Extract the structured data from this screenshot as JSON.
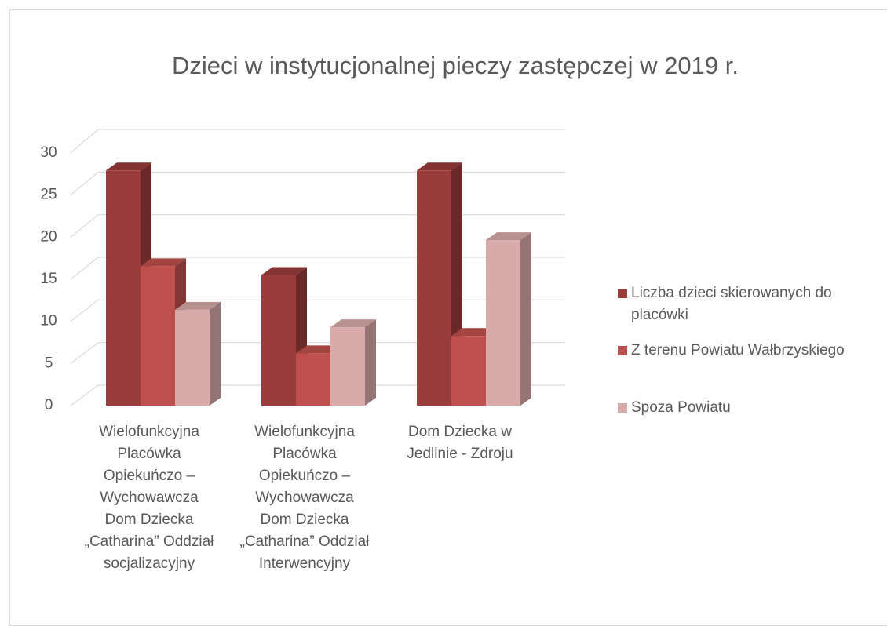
{
  "chart_data": {
    "type": "bar3d",
    "title": "Dzieci w instytucjonalnej pieczy zastępczej w 2019 r.",
    "categories": [
      "Wielofunkcyjna Placówka Opiekuńczo – Wychowawcza Dom Dziecka „Catharina” Oddział socjalizacyjny",
      "Wielofunkcyjna Placówka Opiekuńczo – Wychowawcza Dom Dziecka „Catharina” Oddział Interwencyjny",
      "Dom Dziecka w Jedlinie - Zdroju"
    ],
    "series": [
      {
        "name": "Liczba dzieci skierowanych do placówki",
        "color": "#9c3b3b",
        "values": [
          27,
          15,
          27
        ]
      },
      {
        "name": "Z terenu Powiatu Wałbrzyskiego",
        "color": "#c0504d",
        "values": [
          16,
          6,
          8
        ]
      },
      {
        "name": "Spoza Powiatu",
        "color": "#d9aaaa",
        "values": [
          11,
          9,
          19
        ]
      }
    ],
    "ylim": [
      0,
      30
    ],
    "yticks": [
      0,
      5,
      10,
      15,
      20,
      25,
      30
    ],
    "grid": true,
    "legend": "right"
  }
}
